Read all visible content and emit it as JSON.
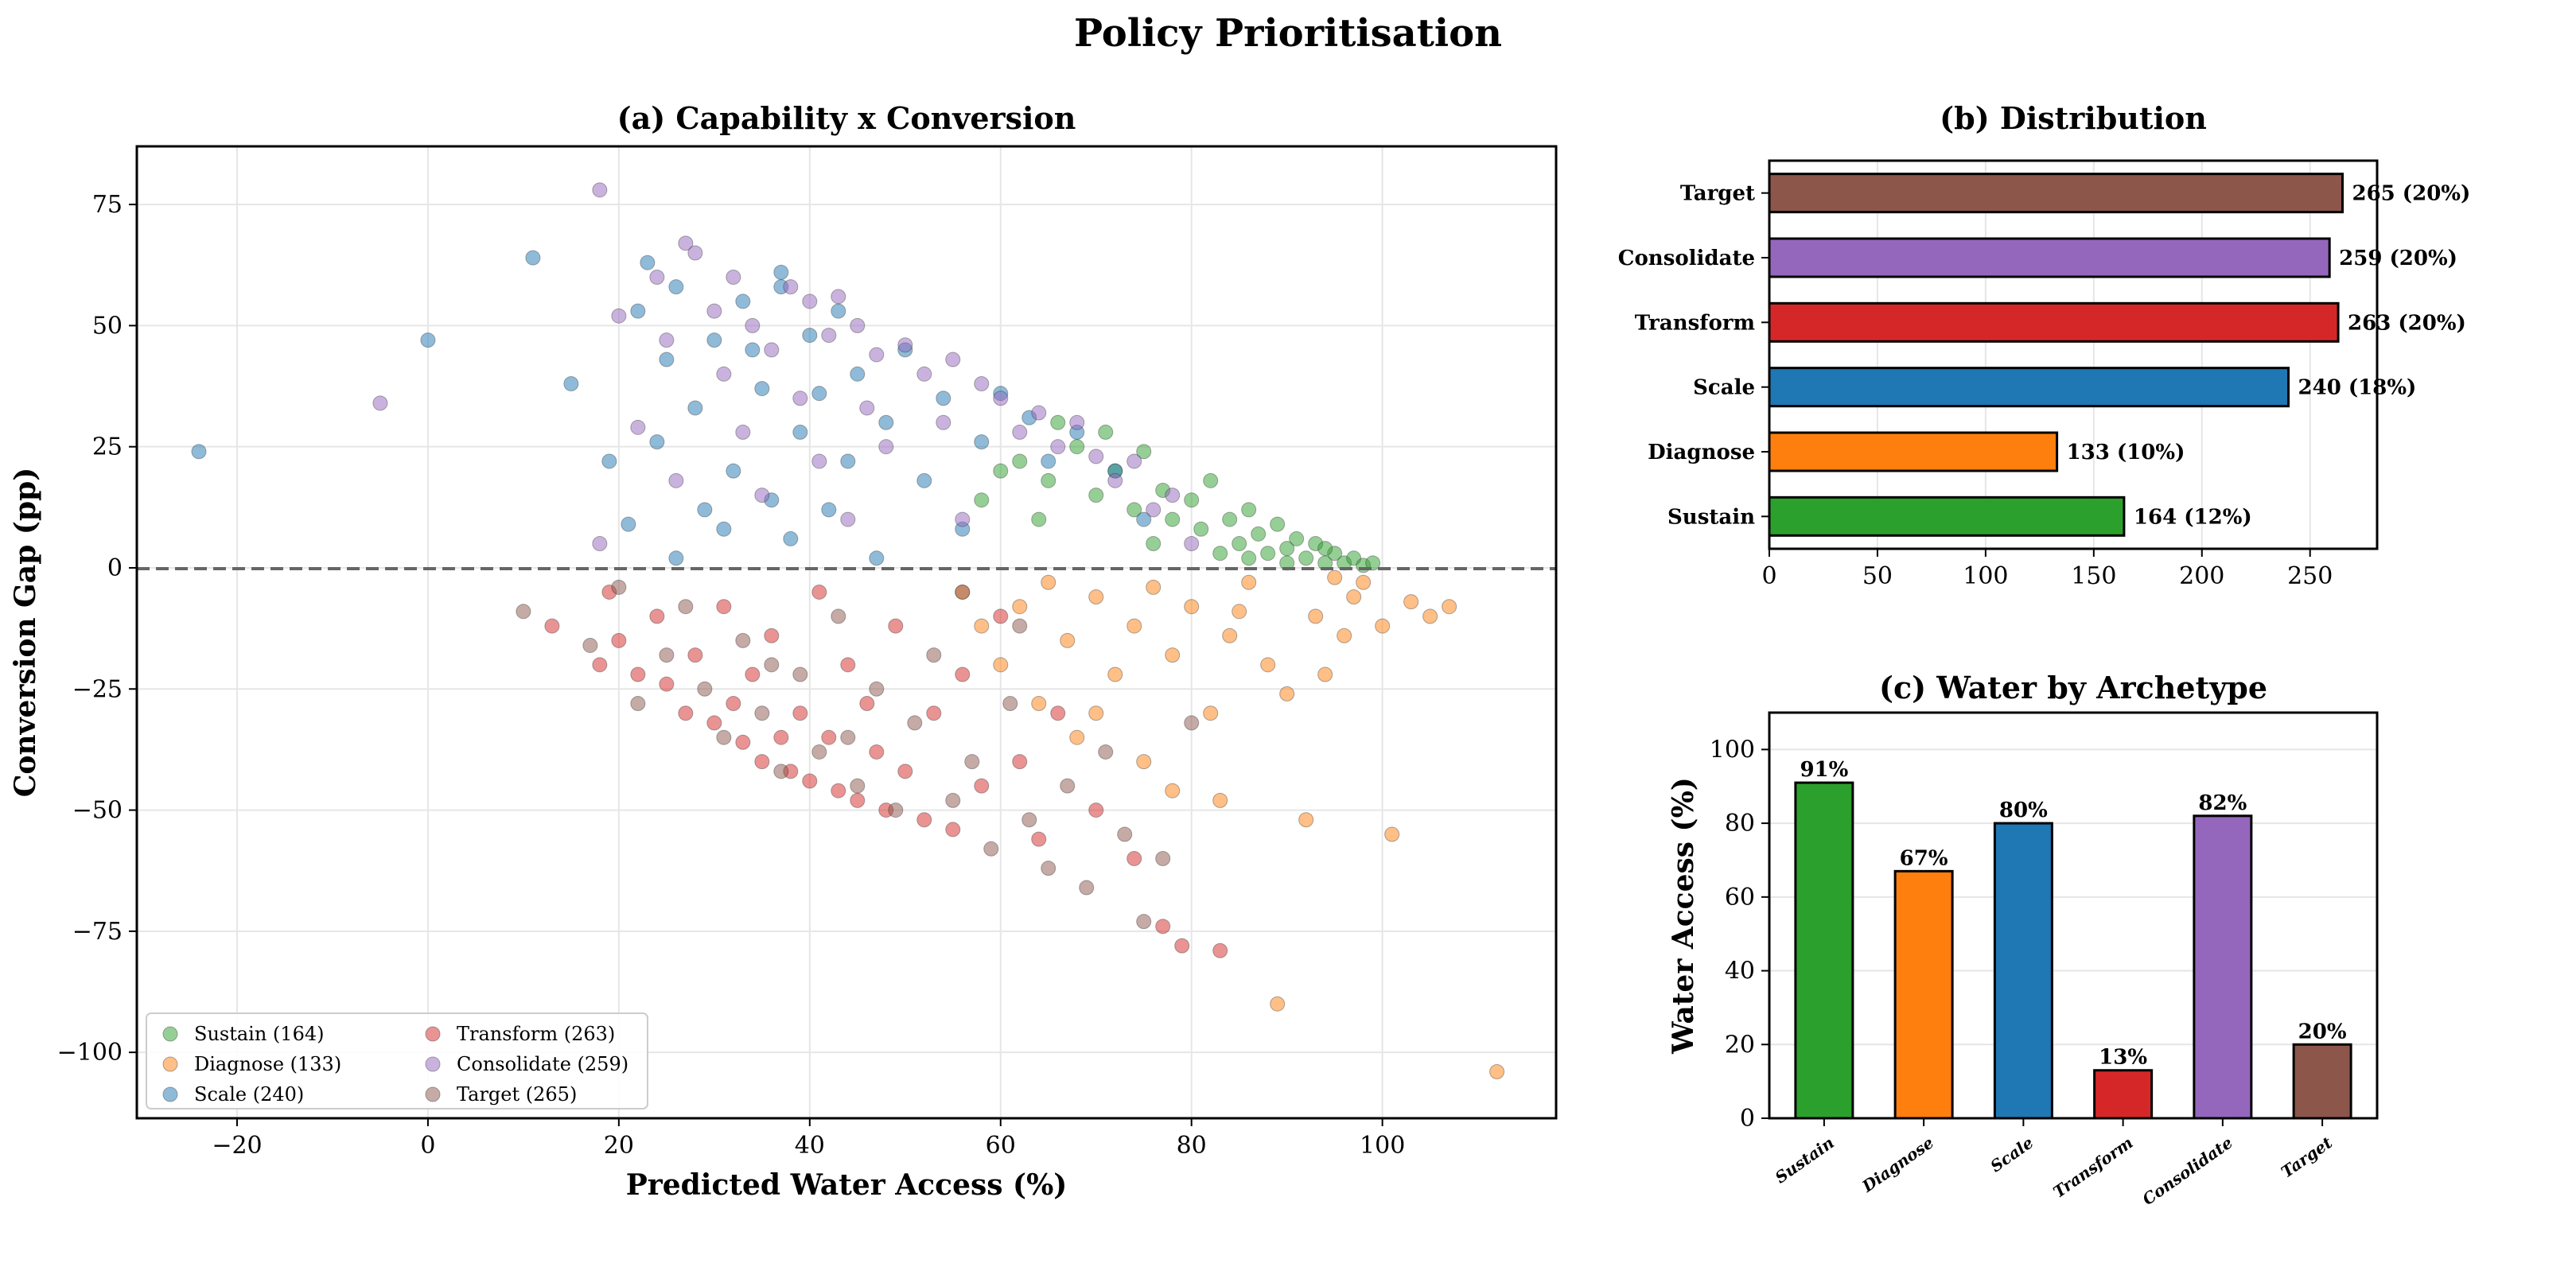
{
  "title": "Policy Prioritisation",
  "colors": {
    "Sustain": "#2ca02c",
    "Diagnose": "#ff7f0e",
    "Scale": "#1f77b4",
    "Transform": "#d62728",
    "Consolidate": "#9467bd",
    "Target": "#8c564b"
  },
  "chart_data": [
    {
      "type": "scatter",
      "title": "(a) Capability x Conversion",
      "xlabel": "Predicted Water Access (%)",
      "ylabel": "Conversion Gap (pp)",
      "xlim": [
        -30.5,
        118.2
      ],
      "ylim": [
        -113.6,
        87
      ],
      "xticks": [
        -20,
        0,
        20,
        40,
        60,
        80,
        100
      ],
      "xtick_labels": [
        "−20",
        "0",
        "20",
        "40",
        "60",
        "80",
        "100"
      ],
      "yticks": [
        -100,
        -75,
        -50,
        -25,
        0,
        25,
        50,
        75
      ],
      "ytick_labels": [
        "−100",
        "−75",
        "−50",
        "−25",
        "0",
        "25",
        "50",
        "75"
      ],
      "grid": true,
      "reference_line_y": 0,
      "legend_placement": "lower-left",
      "series": [
        {
          "name": "Sustain",
          "legend": "Sustain (164)",
          "count": 164,
          "points": [
            [
              62,
              22
            ],
            [
              65,
              18
            ],
            [
              68,
              25
            ],
            [
              70,
              15
            ],
            [
              72,
              20
            ],
            [
              74,
              12
            ],
            [
              75,
              24
            ],
            [
              77,
              16
            ],
            [
              78,
              10
            ],
            [
              80,
              14
            ],
            [
              81,
              8
            ],
            [
              82,
              18
            ],
            [
              84,
              10
            ],
            [
              85,
              5
            ],
            [
              86,
              12
            ],
            [
              87,
              7
            ],
            [
              88,
              3
            ],
            [
              89,
              9
            ],
            [
              90,
              4
            ],
            [
              91,
              6
            ],
            [
              92,
              2
            ],
            [
              93,
              5
            ],
            [
              94,
              1
            ],
            [
              95,
              3
            ],
            [
              96,
              1
            ],
            [
              97,
              2
            ],
            [
              98,
              0.5
            ],
            [
              99,
              1
            ],
            [
              60,
              20
            ],
            [
              66,
              30
            ],
            [
              71,
              28
            ],
            [
              76,
              5
            ],
            [
              83,
              3
            ],
            [
              58,
              14
            ],
            [
              64,
              10
            ],
            [
              86,
              2
            ],
            [
              90,
              1
            ],
            [
              94,
              4
            ]
          ]
        },
        {
          "name": "Diagnose",
          "legend": "Diagnose (133)",
          "count": 133,
          "points": [
            [
              56,
              -5
            ],
            [
              58,
              -12
            ],
            [
              60,
              -20
            ],
            [
              62,
              -8
            ],
            [
              64,
              -28
            ],
            [
              65,
              -3
            ],
            [
              67,
              -15
            ],
            [
              68,
              -35
            ],
            [
              70,
              -6
            ],
            [
              72,
              -22
            ],
            [
              74,
              -12
            ],
            [
              75,
              -40
            ],
            [
              76,
              -4
            ],
            [
              78,
              -18
            ],
            [
              78,
              -46
            ],
            [
              80,
              -8
            ],
            [
              82,
              -30
            ],
            [
              83,
              -48
            ],
            [
              84,
              -14
            ],
            [
              86,
              -3
            ],
            [
              88,
              -20
            ],
            [
              89,
              -90
            ],
            [
              90,
              -26
            ],
            [
              92,
              -52
            ],
            [
              93,
              -10
            ],
            [
              95,
              -2
            ],
            [
              97,
              -6
            ],
            [
              98,
              -3
            ],
            [
              100,
              -12
            ],
            [
              101,
              -55
            ],
            [
              103,
              -7
            ],
            [
              105,
              -10
            ],
            [
              107,
              -8
            ],
            [
              112,
              -104
            ],
            [
              94,
              -22
            ],
            [
              96,
              -14
            ],
            [
              85,
              -9
            ],
            [
              70,
              -30
            ]
          ]
        },
        {
          "name": "Scale",
          "legend": "Scale (240)",
          "count": 240,
          "points": [
            [
              -24,
              24
            ],
            [
              0,
              47
            ],
            [
              11,
              64
            ],
            [
              15,
              38
            ],
            [
              19,
              22
            ],
            [
              21,
              9
            ],
            [
              22,
              53
            ],
            [
              23,
              63
            ],
            [
              24,
              26
            ],
            [
              25,
              43
            ],
            [
              26,
              58
            ],
            [
              28,
              33
            ],
            [
              30,
              47
            ],
            [
              31,
              8
            ],
            [
              32,
              20
            ],
            [
              33,
              55
            ],
            [
              34,
              45
            ],
            [
              35,
              37
            ],
            [
              36,
              14
            ],
            [
              37,
              58
            ],
            [
              38,
              6
            ],
            [
              39,
              28
            ],
            [
              40,
              48
            ],
            [
              41,
              36
            ],
            [
              42,
              12
            ],
            [
              43,
              53
            ],
            [
              44,
              22
            ],
            [
              45,
              40
            ],
            [
              47,
              2
            ],
            [
              48,
              30
            ],
            [
              50,
              45
            ],
            [
              52,
              18
            ],
            [
              54,
              35
            ],
            [
              56,
              8
            ],
            [
              58,
              26
            ],
            [
              60,
              36
            ],
            [
              63,
              31
            ],
            [
              65,
              22
            ],
            [
              68,
              28
            ],
            [
              72,
              20
            ],
            [
              75,
              10
            ],
            [
              37,
              61
            ],
            [
              29,
              12
            ],
            [
              26,
              2
            ]
          ]
        },
        {
          "name": "Transform",
          "legend": "Transform (263)",
          "count": 263,
          "points": [
            [
              13,
              -12
            ],
            [
              18,
              -20
            ],
            [
              19,
              -5
            ],
            [
              20,
              -15
            ],
            [
              22,
              -22
            ],
            [
              24,
              -10
            ],
            [
              25,
              -24
            ],
            [
              27,
              -30
            ],
            [
              28,
              -18
            ],
            [
              30,
              -32
            ],
            [
              31,
              -8
            ],
            [
              33,
              -36
            ],
            [
              34,
              -22
            ],
            [
              35,
              -40
            ],
            [
              36,
              -14
            ],
            [
              38,
              -42
            ],
            [
              39,
              -30
            ],
            [
              40,
              -44
            ],
            [
              41,
              -5
            ],
            [
              42,
              -35
            ],
            [
              43,
              -46
            ],
            [
              44,
              -20
            ],
            [
              45,
              -48
            ],
            [
              47,
              -38
            ],
            [
              48,
              -50
            ],
            [
              49,
              -12
            ],
            [
              50,
              -42
            ],
            [
              52,
              -52
            ],
            [
              53,
              -30
            ],
            [
              55,
              -54
            ],
            [
              56,
              -22
            ],
            [
              58,
              -45
            ],
            [
              60,
              -10
            ],
            [
              62,
              -40
            ],
            [
              64,
              -56
            ],
            [
              66,
              -30
            ],
            [
              70,
              -50
            ],
            [
              74,
              -60
            ],
            [
              77,
              -74
            ],
            [
              79,
              -78
            ],
            [
              83,
              -79
            ],
            [
              32,
              -28
            ],
            [
              37,
              -35
            ],
            [
              46,
              -28
            ]
          ]
        },
        {
          "name": "Consolidate",
          "legend": "Consolidate (259)",
          "count": 259,
          "points": [
            [
              -5,
              34
            ],
            [
              18,
              78
            ],
            [
              18,
              5
            ],
            [
              20,
              52
            ],
            [
              22,
              29
            ],
            [
              24,
              60
            ],
            [
              25,
              47
            ],
            [
              26,
              18
            ],
            [
              27,
              67
            ],
            [
              28,
              65
            ],
            [
              30,
              53
            ],
            [
              31,
              40
            ],
            [
              32,
              60
            ],
            [
              33,
              28
            ],
            [
              34,
              50
            ],
            [
              35,
              15
            ],
            [
              36,
              45
            ],
            [
              38,
              58
            ],
            [
              39,
              35
            ],
            [
              40,
              55
            ],
            [
              41,
              22
            ],
            [
              42,
              48
            ],
            [
              43,
              56
            ],
            [
              44,
              10
            ],
            [
              45,
              50
            ],
            [
              46,
              33
            ],
            [
              47,
              44
            ],
            [
              48,
              25
            ],
            [
              50,
              46
            ],
            [
              52,
              40
            ],
            [
              54,
              30
            ],
            [
              55,
              43
            ],
            [
              56,
              10
            ],
            [
              58,
              38
            ],
            [
              60,
              35
            ],
            [
              62,
              28
            ],
            [
              64,
              32
            ],
            [
              66,
              25
            ],
            [
              68,
              30
            ],
            [
              70,
              23
            ],
            [
              72,
              18
            ],
            [
              74,
              22
            ],
            [
              76,
              12
            ],
            [
              78,
              15
            ],
            [
              80,
              5
            ]
          ]
        },
        {
          "name": "Target",
          "legend": "Target (265)",
          "count": 265,
          "points": [
            [
              10,
              -9
            ],
            [
              17,
              -16
            ],
            [
              20,
              -4
            ],
            [
              22,
              -28
            ],
            [
              25,
              -18
            ],
            [
              27,
              -8
            ],
            [
              29,
              -25
            ],
            [
              31,
              -35
            ],
            [
              33,
              -15
            ],
            [
              35,
              -30
            ],
            [
              37,
              -42
            ],
            [
              39,
              -22
            ],
            [
              41,
              -38
            ],
            [
              43,
              -10
            ],
            [
              45,
              -45
            ],
            [
              47,
              -25
            ],
            [
              49,
              -50
            ],
            [
              51,
              -32
            ],
            [
              53,
              -18
            ],
            [
              55,
              -48
            ],
            [
              57,
              -40
            ],
            [
              59,
              -58
            ],
            [
              61,
              -28
            ],
            [
              63,
              -52
            ],
            [
              65,
              -62
            ],
            [
              67,
              -45
            ],
            [
              69,
              -66
            ],
            [
              71,
              -38
            ],
            [
              73,
              -55
            ],
            [
              75,
              -73
            ],
            [
              77,
              -60
            ],
            [
              80,
              -32
            ],
            [
              62,
              -12
            ],
            [
              56,
              -5
            ],
            [
              44,
              -35
            ],
            [
              36,
              -20
            ]
          ]
        }
      ]
    },
    {
      "type": "bar",
      "orientation": "horizontal",
      "title": "(b) Distribution",
      "categories": [
        "Sustain",
        "Diagnose",
        "Scale",
        "Transform",
        "Consolidate",
        "Target"
      ],
      "values": [
        164,
        133,
        240,
        263,
        259,
        265
      ],
      "data_labels": [
        "164 (12%)",
        "133 (10%)",
        "240 (18%)",
        "263 (20%)",
        "259 (20%)",
        "265 (20%)"
      ],
      "xlim": [
        0,
        281
      ],
      "xticks": [
        0,
        50,
        100,
        150,
        200,
        250
      ],
      "xtick_labels": [
        "0",
        "50",
        "100",
        "150",
        "200",
        "250"
      ],
      "grid": true
    },
    {
      "type": "bar",
      "title": "(c) Water by Archetype",
      "ylabel": "Water Access (%)",
      "categories": [
        "Sustain",
        "Diagnose",
        "Scale",
        "Transform",
        "Consolidate",
        "Target"
      ],
      "values": [
        91,
        67,
        80,
        13,
        82,
        20
      ],
      "data_labels": [
        "91%",
        "67%",
        "80%",
        "13%",
        "82%",
        "20%"
      ],
      "ylim": [
        0,
        110
      ],
      "yticks": [
        0,
        20,
        40,
        60,
        80,
        100
      ],
      "ytick_labels": [
        "0",
        "20",
        "40",
        "60",
        "80",
        "100"
      ],
      "grid": true
    }
  ]
}
